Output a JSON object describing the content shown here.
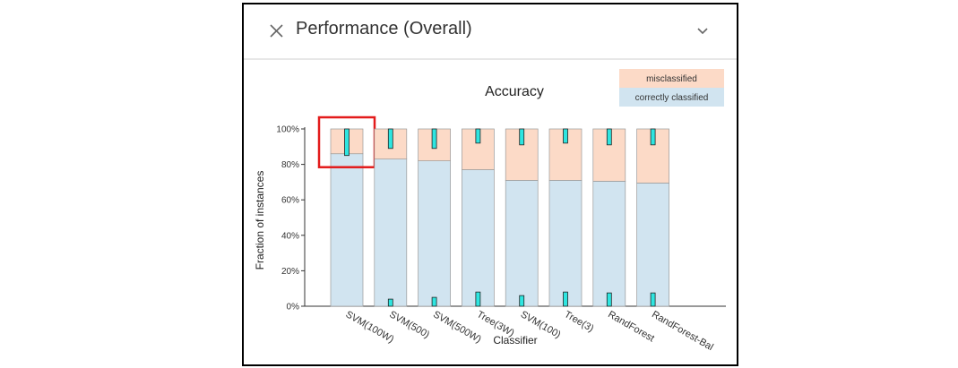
{
  "panel": {
    "title": "Performance (Overall)",
    "close_icon": "close-icon",
    "expand_icon": "chevron-down-icon"
  },
  "chart_data": {
    "type": "bar",
    "stacked": true,
    "title": "Accuracy",
    "xlabel": "Classifier",
    "ylabel": "Fraction of instances",
    "ylim": [
      0,
      1
    ],
    "yticks": [
      "0%",
      "20%",
      "40%",
      "60%",
      "80%",
      "100%"
    ],
    "categories": [
      "SVM(100W)",
      "SVM(500)",
      "SVM(500W)",
      "Tree(3W)",
      "SVM(100)",
      "Tree(3)",
      "RandForest",
      "RandForest-Bal"
    ],
    "series": [
      {
        "name": "correctly classified",
        "color": "#d1e4f0",
        "values": [
          0.86,
          0.83,
          0.82,
          0.77,
          0.71,
          0.71,
          0.705,
          0.695
        ]
      },
      {
        "name": "misclassified",
        "color": "#fcdac7",
        "values": [
          0.14,
          0.17,
          0.18,
          0.23,
          0.29,
          0.29,
          0.295,
          0.305
        ]
      }
    ],
    "uncertainty_top": [
      [
        0.85,
        1.0
      ],
      [
        0.89,
        1.0
      ],
      [
        0.89,
        1.0
      ],
      [
        0.92,
        1.0
      ],
      [
        0.91,
        1.0
      ],
      [
        0.92,
        1.0
      ],
      [
        0.91,
        1.0
      ],
      [
        0.91,
        1.0
      ]
    ],
    "uncertainty_bottom": [
      null,
      [
        0.0,
        0.04
      ],
      [
        0.0,
        0.05
      ],
      [
        0.0,
        0.08
      ],
      [
        0.0,
        0.06
      ],
      [
        0.0,
        0.08
      ],
      [
        0.0,
        0.075
      ],
      [
        0.0,
        0.075
      ]
    ],
    "uncertainty_color": "#2ee5e0",
    "highlighted_category": "SVM(100W)",
    "highlight_color": "#e31b1b",
    "legend_position": "top-right",
    "grid": false
  }
}
